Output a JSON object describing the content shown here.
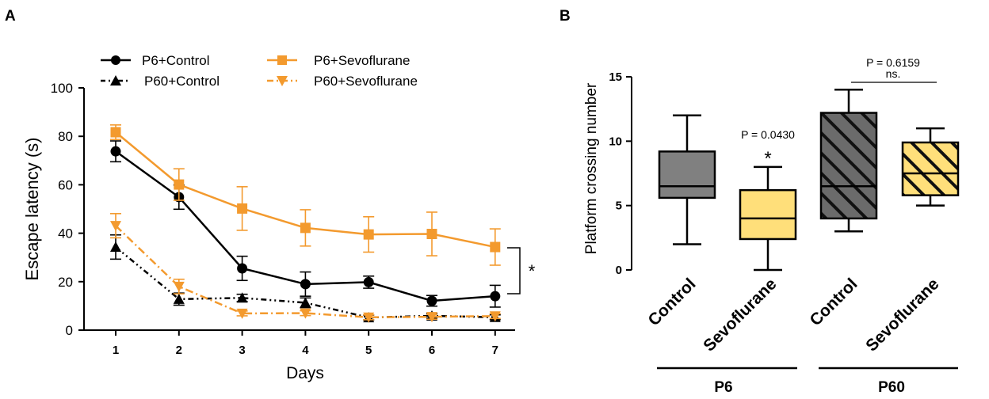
{
  "figure": {
    "panel_a_letter": "A",
    "panel_b_letter": "B"
  },
  "chart_data": [
    {
      "type": "line",
      "panel": "A",
      "xlabel": "Days",
      "ylabel": "Escape latency (s)",
      "x": [
        1,
        2,
        3,
        4,
        5,
        6,
        7
      ],
      "ylim": [
        0,
        100
      ],
      "yticks": [
        0,
        20,
        40,
        60,
        80,
        100
      ],
      "grid": false,
      "legend_position": "top",
      "significance_label": "*",
      "series": [
        {
          "name": "P6+Control",
          "color": "#000000",
          "marker": "circle",
          "dash": "solid",
          "values": [
            73.8,
            54.9,
            25.5,
            19.0,
            19.8,
            12.1,
            14.0
          ],
          "errors": [
            4.3,
            5.0,
            5.0,
            5.0,
            2.5,
            2.2,
            4.5
          ]
        },
        {
          "name": "P60+Control",
          "color": "#000000",
          "marker": "triangle-up",
          "dash": "dashdotdot",
          "values": [
            34.3,
            12.8,
            13.3,
            11.3,
            5.2,
            5.9,
            5.3
          ],
          "errors": [
            5.0,
            2.5,
            1.5,
            2.0,
            1.0,
            1.0,
            1.0
          ]
        },
        {
          "name": "P6+Sevoflurane",
          "color": "#F39A2E",
          "marker": "square",
          "dash": "solid",
          "values": [
            81.7,
            60.1,
            50.2,
            42.2,
            39.5,
            39.7,
            34.3
          ],
          "errors": [
            3.0,
            6.5,
            9.0,
            7.5,
            7.3,
            9.0,
            7.5
          ]
        },
        {
          "name": "P60+Sevoflurane",
          "color": "#F39A2E",
          "marker": "triangle-down",
          "dash": "dashdot",
          "values": [
            43.1,
            18.0,
            6.9,
            7.0,
            5.3,
            5.5,
            5.8
          ],
          "errors": [
            5.0,
            3.0,
            1.0,
            1.0,
            1.0,
            1.0,
            1.0
          ]
        }
      ]
    },
    {
      "type": "box",
      "panel": "B",
      "ylabel": "Platform crossing number",
      "ylim": [
        0,
        15
      ],
      "yticks": [
        0,
        5,
        10,
        15
      ],
      "categories": [
        "Control",
        "Sevoflurane",
        "Control",
        "Sevoflurane"
      ],
      "groups": [
        {
          "label": "P6",
          "members": [
            0,
            1
          ]
        },
        {
          "label": "P60",
          "members": [
            2,
            3
          ]
        }
      ],
      "boxes": [
        {
          "min": 2,
          "q1": 5.6,
          "median": 6.5,
          "q3": 9.2,
          "max": 12,
          "fill": "#808080",
          "hatched": false
        },
        {
          "min": 0,
          "q1": 2.4,
          "median": 4.0,
          "q3": 6.2,
          "max": 8,
          "fill": "#FFDF7A",
          "hatched": false
        },
        {
          "min": 3,
          "q1": 4.0,
          "median": 6.5,
          "q3": 12.2,
          "max": 14,
          "fill": "#6B6B6B",
          "hatched": true
        },
        {
          "min": 5,
          "q1": 5.8,
          "median": 7.5,
          "q3": 9.9,
          "max": 11,
          "fill": "#FFDF7A",
          "hatched": true
        }
      ],
      "annotations": {
        "sevo_p6_pvalue": "P = 0.0430",
        "sevo_p6_star": "*",
        "p60_pvalue": "P = 0.6159",
        "p60_ns": "ns."
      }
    }
  ]
}
